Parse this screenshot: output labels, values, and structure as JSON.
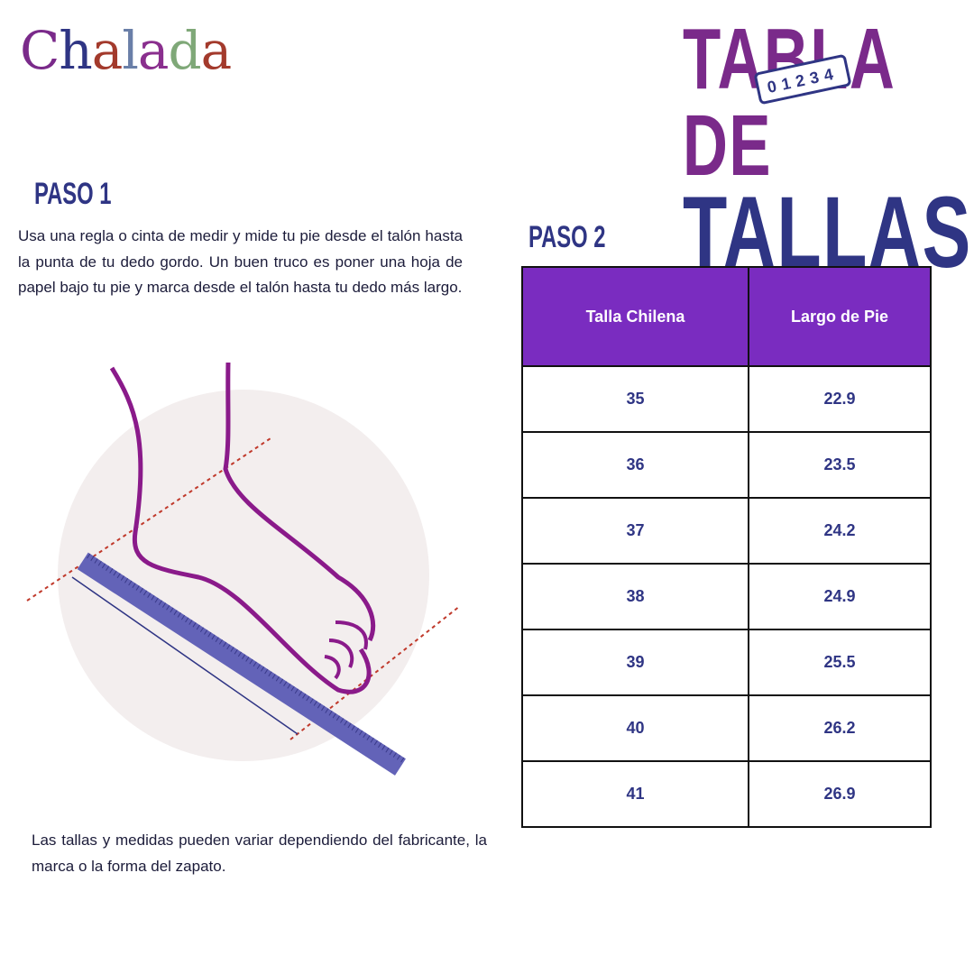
{
  "brand": {
    "logo_text": "Chalada",
    "letters": [
      "C",
      "h",
      "a",
      "l",
      "a",
      "d",
      "a"
    ],
    "letter_colors": [
      "#7a2a8a",
      "#2f3584",
      "#a33a2c",
      "#6a7fa8",
      "#8a2f8e",
      "#7fa878",
      "#a33a2c"
    ]
  },
  "title": {
    "line1": "TABLA DE",
    "line2": "TALLAS",
    "ruler_digits": "01234"
  },
  "step1": {
    "heading": "PASO 1",
    "text": "Usa una regla o cinta de medir y mide tu pie desde el talón hasta la punta de tu dedo gordo. Un buen truco es poner una hoja de papel bajo tu pie y marca desde el talón hasta tu dedo más largo."
  },
  "step2": {
    "heading": "PASO 2"
  },
  "table": {
    "headers": [
      "Talla Chilena",
      "Largo de Pie"
    ],
    "rows": [
      [
        "35",
        "22.9"
      ],
      [
        "36",
        "23.5"
      ],
      [
        "37",
        "24.2"
      ],
      [
        "38",
        "24.9"
      ],
      [
        "39",
        "25.5"
      ],
      [
        "40",
        "26.2"
      ],
      [
        "41",
        "26.9"
      ]
    ]
  },
  "note": "Las tallas y medidas pueden variar dependiendo del fabricante, la marca o la forma del zapato.",
  "colors": {
    "purple": "#7a2a8a",
    "navy": "#2f3584",
    "header": "#7a2cc0"
  }
}
